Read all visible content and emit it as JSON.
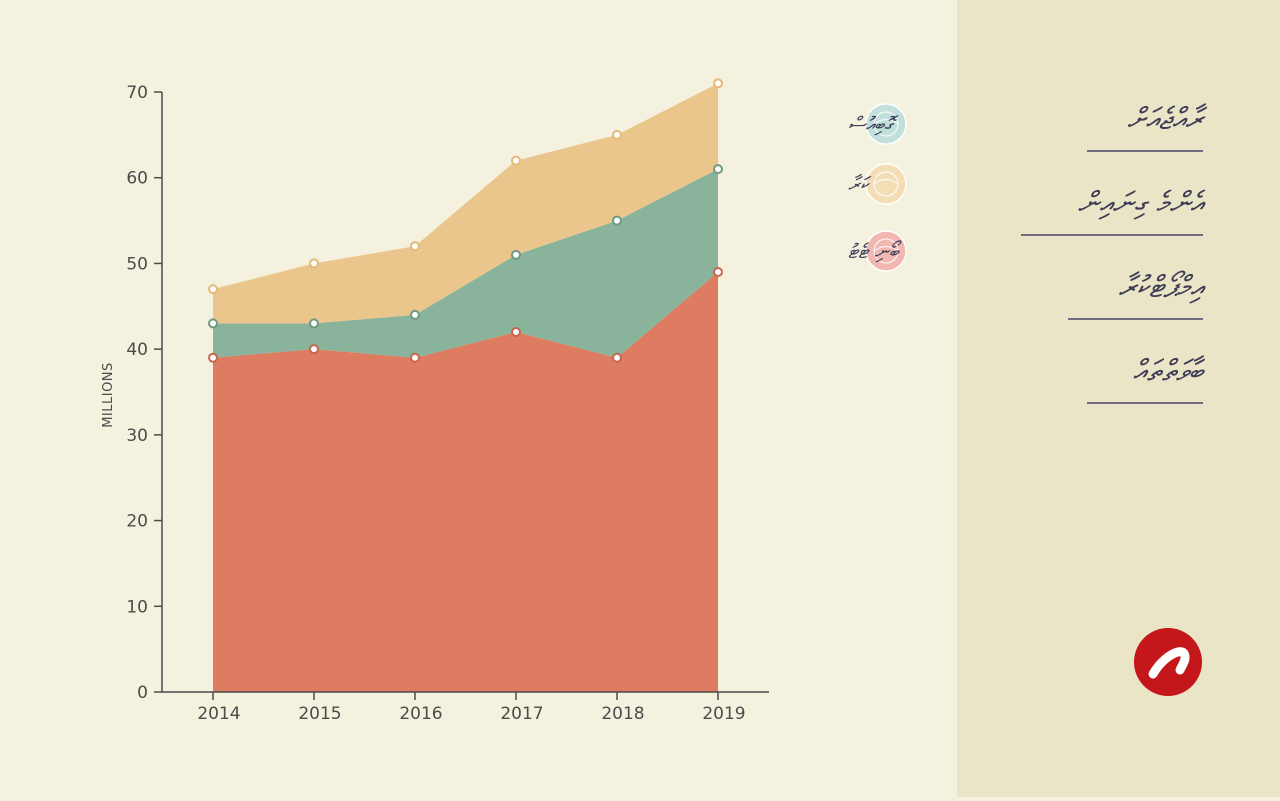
{
  "chart_data": {
    "type": "area",
    "stacked": true,
    "categories": [
      "2014",
      "2015",
      "2016",
      "2017",
      "2018",
      "2019"
    ],
    "ylabel": "MILLIONS",
    "ylim": [
      0,
      70
    ],
    "yticks": [
      0,
      10,
      20,
      30,
      40,
      50,
      60,
      70
    ],
    "grid": false,
    "legend_position": "right",
    "series": [
      {
        "name": "ބޯނި ޓެޓު",
        "color": "#dd7c61",
        "marker_stroke": "#c9654b",
        "values": [
          39,
          40,
          39,
          42,
          39,
          49
        ]
      },
      {
        "name": "ކަރާ",
        "color": "#89b39b",
        "marker_stroke": "#6e9a82",
        "values": [
          4,
          3,
          5,
          9,
          16,
          12
        ]
      },
      {
        "name": "ގޮބިއުސް",
        "color": "#eac68c",
        "marker_stroke": "#e3b979",
        "values": [
          4,
          7,
          8,
          11,
          10,
          10
        ]
      }
    ],
    "stacked_totals": [
      47,
      50,
      52,
      62,
      65,
      71
    ]
  },
  "legend": [
    {
      "label": "ގޮބިއުސް",
      "icon": "cabbage-icon",
      "icon_color": "#bfe0dc"
    },
    {
      "label": "ކަރާ",
      "icon": "melon-slice-icon",
      "icon_color": "#f2dcb2"
    },
    {
      "label": "ބޯނި ޓެޓު",
      "icon": "meat-icon",
      "icon_color": "#f3b4b0"
    }
  ],
  "sidebar": {
    "items": [
      {
        "label": "ރާއްޖެއަށް"
      },
      {
        "label": "އެންމެ ގިނައިން"
      },
      {
        "label": "އިމްޕޯޓްކުރާ"
      },
      {
        "label": "ބާވަތްތައް"
      }
    ]
  },
  "brand": {
    "color": "#c4171b",
    "icon": "brand-logo-icon"
  }
}
